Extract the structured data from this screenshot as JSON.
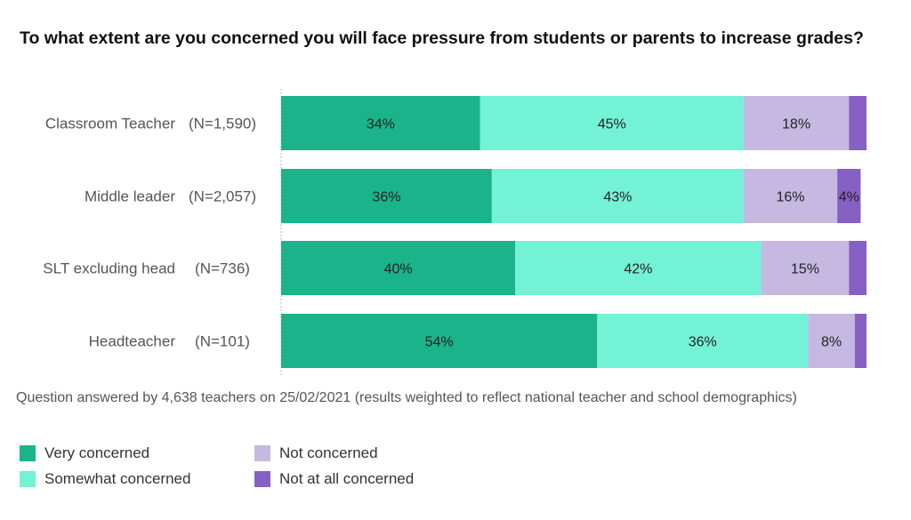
{
  "chart_data": {
    "type": "bar",
    "orientation": "horizontal",
    "stacked": true,
    "title": "To what extent are you concerned you will face pressure from students or parents to increase grades?",
    "categories": [
      {
        "label": "Classroom Teacher",
        "n": "(N=1,590)"
      },
      {
        "label": "Middle leader",
        "n": "(N=2,057)"
      },
      {
        "label": "SLT excluding head",
        "n": "(N=736)"
      },
      {
        "label": "Headteacher",
        "n": "(N=101)"
      }
    ],
    "series": [
      {
        "name": "Very concerned",
        "color": "#1bb38a",
        "values": [
          34,
          36,
          40,
          54
        ],
        "labels": [
          "34%",
          "36%",
          "40%",
          "54%"
        ]
      },
      {
        "name": "Somewhat concerned",
        "color": "#74f2d5",
        "values": [
          45,
          43,
          42,
          36
        ],
        "labels": [
          "45%",
          "43%",
          "42%",
          "36%"
        ]
      },
      {
        "name": "Not concerned",
        "color": "#c5b9e1",
        "values": [
          18,
          16,
          15,
          8
        ],
        "labels": [
          "18%",
          "16%",
          "15%",
          "8%"
        ]
      },
      {
        "name": "Not at all concerned",
        "color": "#8660c2",
        "values": [
          3,
          4,
          3,
          2
        ],
        "labels": [
          "",
          "4%",
          "",
          ""
        ]
      }
    ],
    "xlim": [
      0,
      100
    ],
    "footnote": "Question answered by 4,638 teachers on 25/02/2021 (results weighted to reflect national teacher and school demographics)",
    "legend_position": "bottom"
  }
}
